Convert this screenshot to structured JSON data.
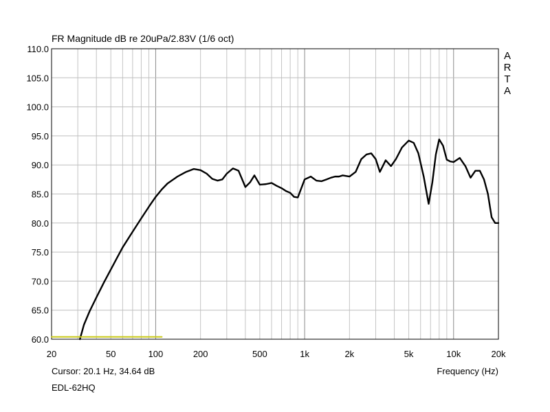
{
  "chart_data": {
    "type": "line",
    "title": "FR Magnitude dB re 20uPa/2.83V (1/6 oct)",
    "xlabel": "Frequency (Hz)",
    "ylabel": "",
    "x_scale": "log",
    "xlim": [
      20,
      20000
    ],
    "ylim": [
      60,
      110
    ],
    "grid": true,
    "y_ticks": [
      "110.0",
      "105.0",
      "100.0",
      "95.0",
      "90.0",
      "85.0",
      "80.0",
      "75.0",
      "70.0",
      "65.0",
      "60.0"
    ],
    "x_ticks": [
      {
        "value": 20,
        "label": "20"
      },
      {
        "value": 50,
        "label": "50"
      },
      {
        "value": 100,
        "label": "100"
      },
      {
        "value": 200,
        "label": "200"
      },
      {
        "value": 500,
        "label": "500"
      },
      {
        "value": 1000,
        "label": "1k"
      },
      {
        "value": 2000,
        "label": "2k"
      },
      {
        "value": 5000,
        "label": "5k"
      },
      {
        "value": 10000,
        "label": "10k"
      },
      {
        "value": 20000,
        "label": "20k"
      }
    ],
    "series": [
      {
        "name": "",
        "color": "#000000",
        "x": [
          31,
          33,
          36,
          40,
          45,
          50,
          55,
          60,
          70,
          80,
          90,
          100,
          110,
          120,
          140,
          160,
          180,
          200,
          220,
          240,
          260,
          280,
          300,
          330,
          360,
          400,
          430,
          460,
          500,
          550,
          600,
          650,
          700,
          750,
          800,
          850,
          900,
          950,
          1000,
          1100,
          1200,
          1300,
          1400,
          1500,
          1600,
          1700,
          1800,
          2000,
          2200,
          2400,
          2600,
          2800,
          3000,
          3200,
          3500,
          3800,
          4100,
          4500,
          5000,
          5400,
          5800,
          6300,
          6800,
          7200,
          7600,
          8000,
          8500,
          9000,
          9500,
          10000,
          11000,
          12000,
          13000,
          14000,
          15000,
          16000,
          17000,
          18000,
          19000,
          20000
        ],
        "y": [
          60.0,
          62.5,
          64.8,
          67.2,
          69.8,
          72.0,
          74.0,
          75.8,
          78.5,
          80.8,
          82.8,
          84.5,
          85.8,
          86.8,
          88.0,
          88.8,
          89.3,
          89.1,
          88.5,
          87.6,
          87.3,
          87.5,
          88.5,
          89.4,
          89.0,
          86.2,
          87.0,
          88.2,
          86.6,
          86.7,
          86.9,
          86.4,
          86.0,
          85.5,
          85.2,
          84.5,
          84.4,
          86.0,
          87.5,
          88.0,
          87.3,
          87.2,
          87.5,
          87.8,
          88.0,
          88.0,
          88.2,
          88.0,
          88.8,
          91.0,
          91.8,
          92.0,
          91.0,
          88.8,
          90.8,
          89.8,
          91.0,
          93.0,
          94.2,
          93.8,
          92.0,
          88.0,
          83.3,
          87.0,
          91.8,
          94.4,
          93.3,
          90.9,
          90.6,
          90.5,
          91.2,
          89.8,
          87.8,
          89.0,
          89.0,
          87.5,
          85.0,
          81.0,
          80.0,
          80.0
        ]
      },
      {
        "name": "",
        "color": "#c8c814",
        "x": [
          20,
          110
        ],
        "y": [
          60.4,
          60.4
        ]
      }
    ],
    "annotations": [
      "ARTA"
    ]
  },
  "footer": {
    "cursor": "Cursor: 20.1 Hz, 34.64 dB",
    "device": "EDL-62HQ"
  },
  "watermark": [
    "A",
    "R",
    "T",
    "A"
  ]
}
